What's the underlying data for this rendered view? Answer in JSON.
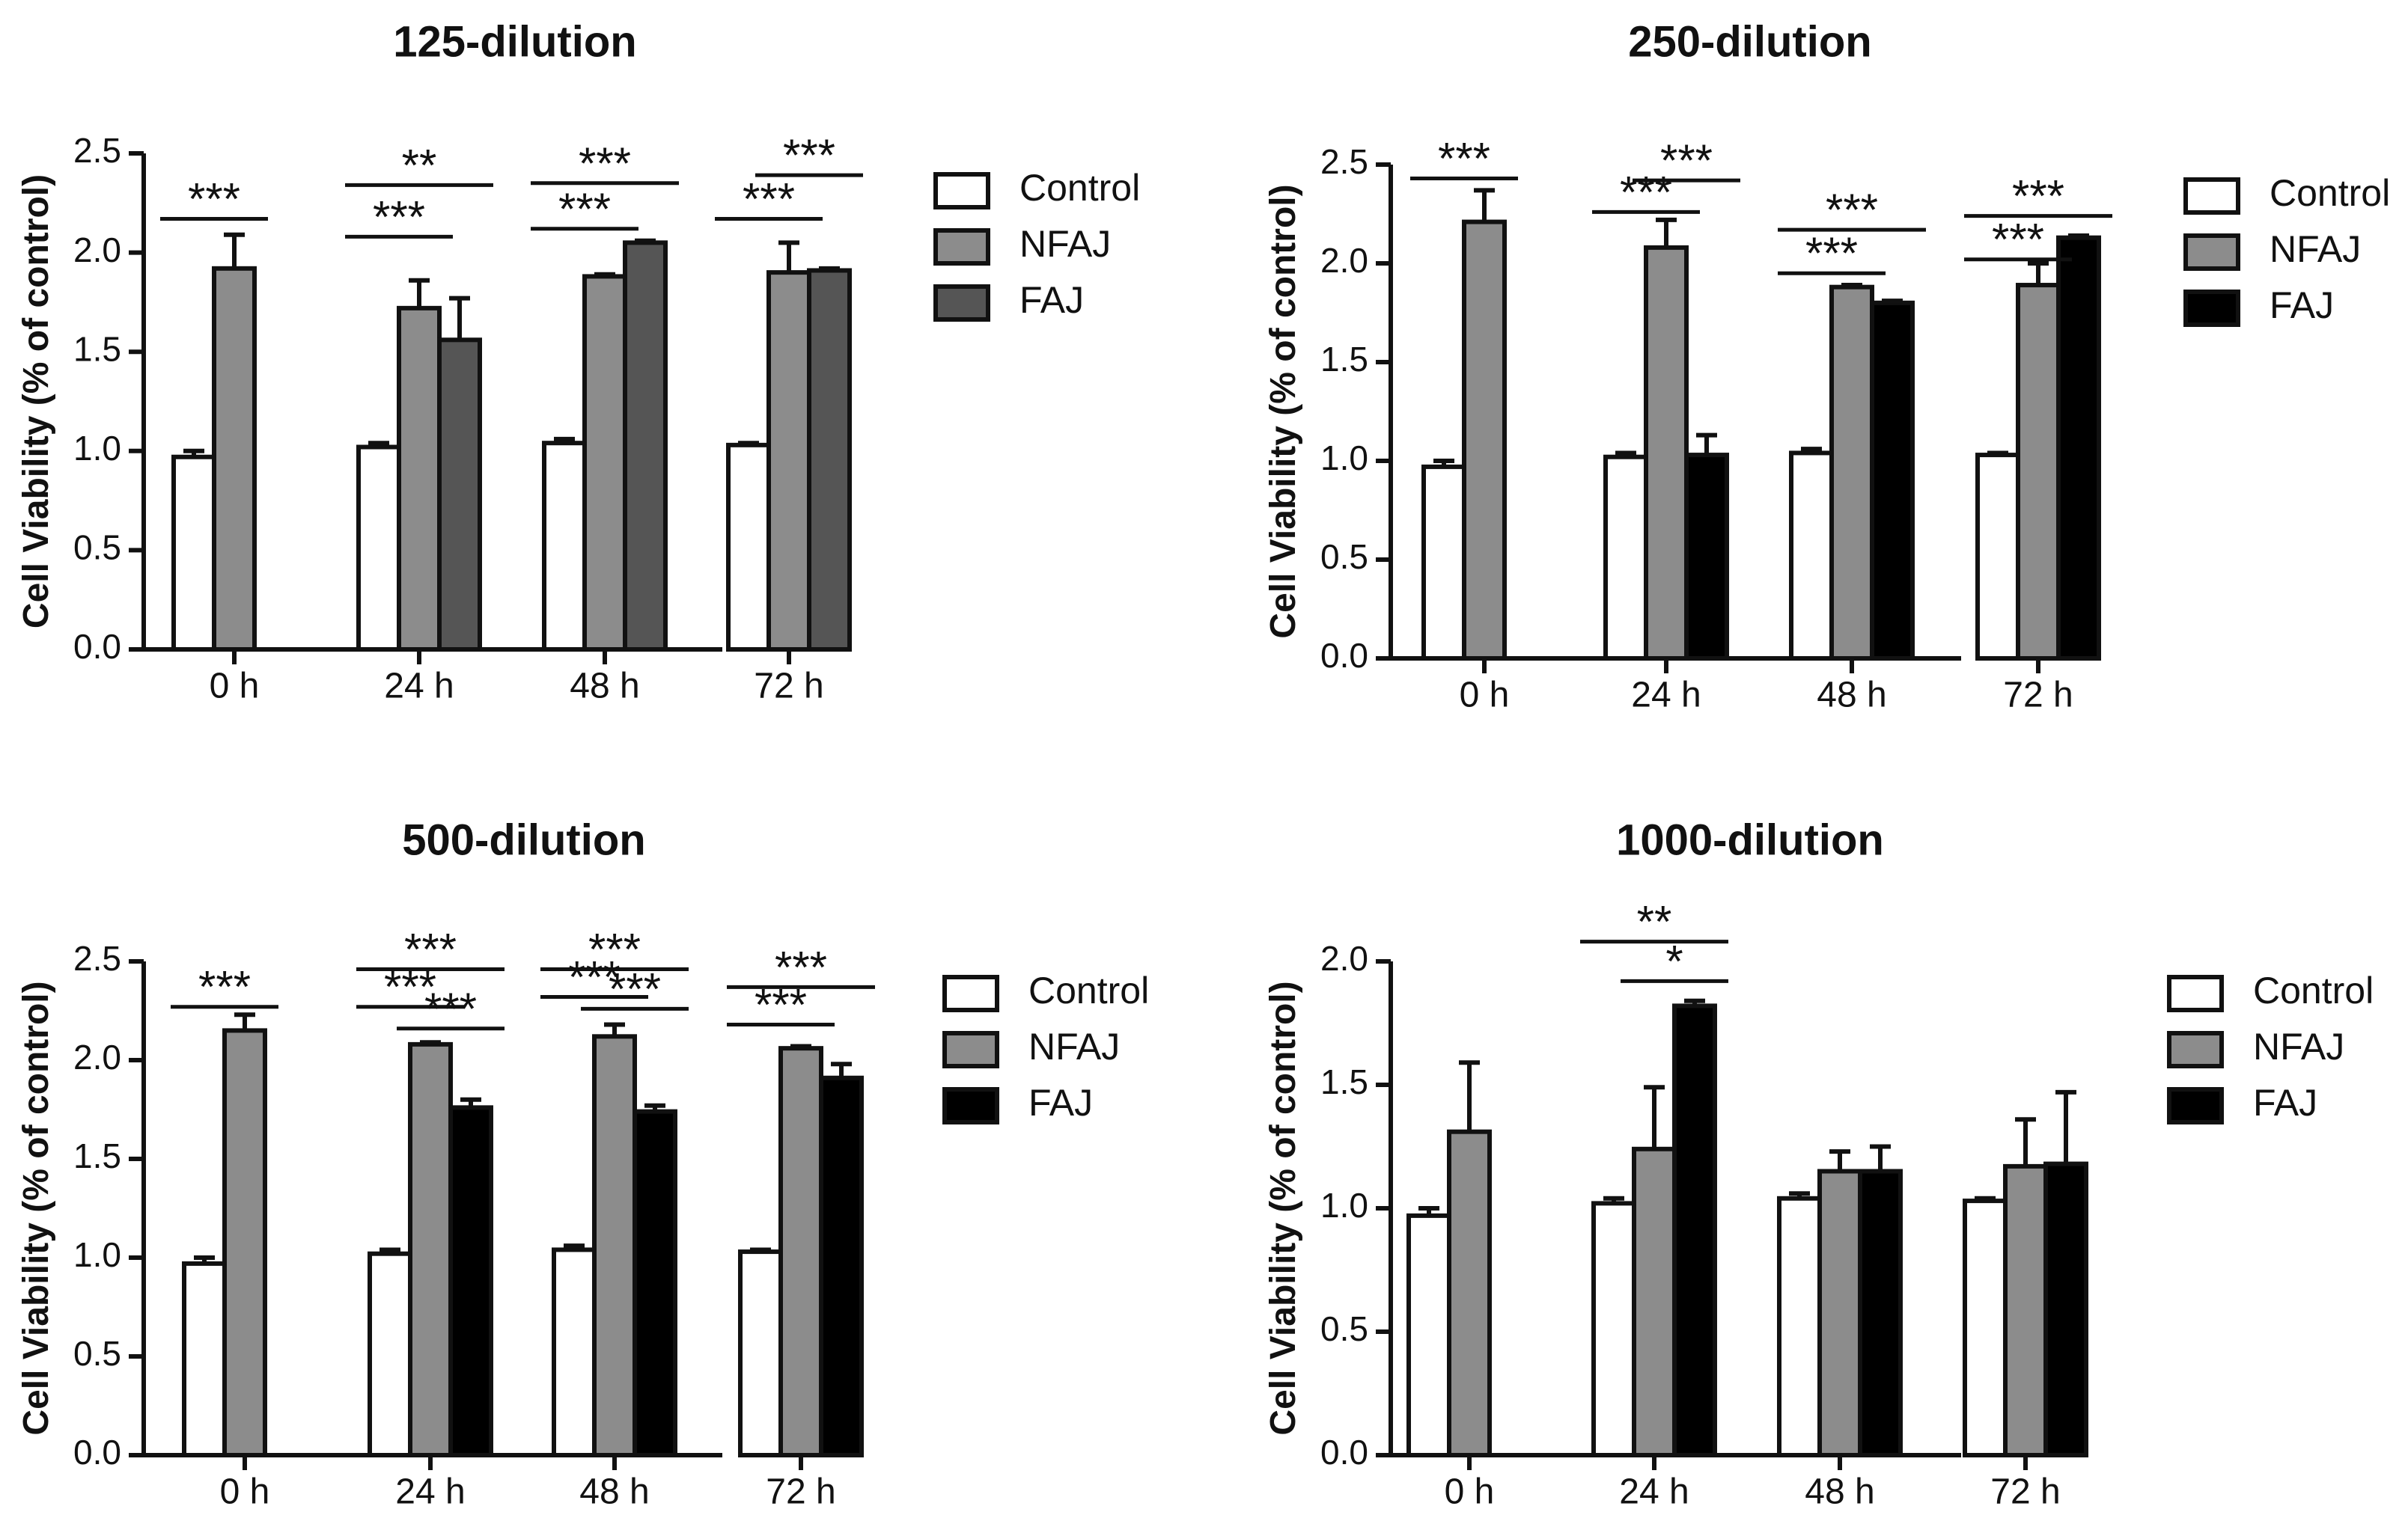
{
  "chart_data": [
    {
      "type": "bar",
      "title": "125-dilution",
      "xlabel": "",
      "ylabel": "Cell Viability (% of control)",
      "ylim": [
        0,
        2.5
      ],
      "yticks": [
        "0.0",
        "0.5",
        "1.0",
        "1.5",
        "2.0",
        "2.5"
      ],
      "categories": [
        "0 h",
        "24 h",
        "48 h",
        "72 h"
      ],
      "legend_position": "right",
      "series": [
        {
          "name": "Control",
          "color": "#ffffff",
          "values": [
            0.97,
            1.02,
            1.04,
            1.03
          ],
          "errors": [
            0.03,
            0.02,
            0.02,
            0.01
          ]
        },
        {
          "name": "NFAJ",
          "color": "#8c8c8c",
          "values": [
            1.92,
            1.72,
            1.88,
            1.9
          ],
          "errors": [
            0.17,
            0.14,
            0.01,
            0.15
          ]
        },
        {
          "name": "FAJ",
          "color": "#555555",
          "values": [
            null,
            1.56,
            2.05,
            1.91
          ],
          "errors": [
            null,
            0.21,
            0.01,
            0.01
          ]
        }
      ],
      "significance": [
        {
          "label": "***",
          "cat": 0,
          "from": 0,
          "to": 1,
          "y": 2.17
        },
        {
          "label": "***",
          "cat": 1,
          "from": 0,
          "to": 1,
          "y": 2.08
        },
        {
          "label": "**",
          "cat": 1,
          "from": 0,
          "to": 2,
          "y": 2.34
        },
        {
          "label": "***",
          "cat": 2,
          "from": 0,
          "to": 1,
          "y": 2.12
        },
        {
          "label": "***",
          "cat": 2,
          "from": 0,
          "to": 2,
          "y": 2.35
        },
        {
          "label": "***",
          "cat": 3,
          "from": 0,
          "to": 1,
          "y": 2.17
        },
        {
          "label": "***",
          "cat": 3,
          "from": 1,
          "to": 2,
          "y": 2.39
        }
      ]
    },
    {
      "type": "bar",
      "title": "250-dilution",
      "xlabel": "",
      "ylabel": "Cell Viability (% of control)",
      "ylim": [
        0,
        2.5
      ],
      "yticks": [
        "0.0",
        "0.5",
        "1.0",
        "1.5",
        "2.0",
        "2.5"
      ],
      "categories": [
        "0 h",
        "24 h",
        "48 h",
        "72 h"
      ],
      "legend_position": "right",
      "series": [
        {
          "name": "Control",
          "color": "#ffffff",
          "values": [
            0.97,
            1.02,
            1.04,
            1.03
          ],
          "errors": [
            0.03,
            0.02,
            0.02,
            0.01
          ]
        },
        {
          "name": "NFAJ",
          "color": "#8c8c8c",
          "values": [
            2.21,
            2.08,
            1.88,
            1.89
          ],
          "errors": [
            0.16,
            0.14,
            0.01,
            0.11
          ]
        },
        {
          "name": "FAJ",
          "color": "#000000",
          "values": [
            null,
            1.03,
            1.8,
            2.13
          ],
          "errors": [
            null,
            0.1,
            0.01,
            0.01
          ]
        }
      ],
      "significance": [
        {
          "label": "***",
          "cat": 0,
          "from": 0,
          "to": 1,
          "y": 2.43
        },
        {
          "label": "***",
          "cat": 1,
          "from": 0,
          "to": 1,
          "y": 2.26
        },
        {
          "label": "***",
          "cat": 1,
          "from": 1,
          "to": 2,
          "y": 2.42
        },
        {
          "label": "***",
          "cat": 2,
          "from": 0,
          "to": 1,
          "y": 1.95
        },
        {
          "label": "***",
          "cat": 2,
          "from": 0,
          "to": 2,
          "y": 2.17
        },
        {
          "label": "***",
          "cat": 3,
          "from": 0,
          "to": 1,
          "y": 2.02
        },
        {
          "label": "***",
          "cat": 3,
          "from": 0,
          "to": 2,
          "y": 2.24
        }
      ]
    },
    {
      "type": "bar",
      "title": "500-dilution",
      "xlabel": "",
      "ylabel": "Cell Viability (% of control)",
      "ylim": [
        0,
        2.5
      ],
      "yticks": [
        "0.0",
        "0.5",
        "1.0",
        "1.5",
        "2.0",
        "2.5"
      ],
      "categories": [
        "0 h",
        "24 h",
        "48 h",
        "72 h"
      ],
      "legend_position": "right",
      "series": [
        {
          "name": "Control",
          "color": "#ffffff",
          "values": [
            0.97,
            1.02,
            1.04,
            1.03
          ],
          "errors": [
            0.03,
            0.02,
            0.02,
            0.01
          ]
        },
        {
          "name": "NFAJ",
          "color": "#8c8c8c",
          "values": [
            2.15,
            2.08,
            2.12,
            2.06
          ],
          "errors": [
            0.08,
            0.01,
            0.06,
            0.01
          ]
        },
        {
          "name": "FAJ",
          "color": "#000000",
          "values": [
            null,
            1.76,
            1.74,
            1.91
          ],
          "errors": [
            null,
            0.04,
            0.03,
            0.07
          ]
        }
      ],
      "significance": [
        {
          "label": "***",
          "cat": 0,
          "from": 0,
          "to": 1,
          "y": 2.27
        },
        {
          "label": "***",
          "cat": 1,
          "from": 0,
          "to": 1,
          "y": 2.27
        },
        {
          "label": "***",
          "cat": 1,
          "from": 1,
          "to": 2,
          "y": 2.16
        },
        {
          "label": "***",
          "cat": 1,
          "from": 0,
          "to": 2,
          "y": 2.46
        },
        {
          "label": "***",
          "cat": 2,
          "from": 0,
          "to": 1,
          "y": 2.32
        },
        {
          "label": "***",
          "cat": 2,
          "from": 1,
          "to": 2,
          "y": 2.26
        },
        {
          "label": "***",
          "cat": 2,
          "from": 0,
          "to": 2,
          "y": 2.46
        },
        {
          "label": "***",
          "cat": 3,
          "from": 0,
          "to": 1,
          "y": 2.18
        },
        {
          "label": "***",
          "cat": 3,
          "from": 0,
          "to": 2,
          "y": 2.37
        }
      ]
    },
    {
      "type": "bar",
      "title": "1000-dilution",
      "xlabel": "",
      "ylabel": "Cell Viability (% of control)",
      "ylim": [
        0,
        2.0
      ],
      "yticks": [
        "0.0",
        "0.5",
        "1.0",
        "1.5",
        "2.0"
      ],
      "categories": [
        "0 h",
        "24 h",
        "48 h",
        "72 h"
      ],
      "legend_position": "right",
      "series": [
        {
          "name": "Control",
          "color": "#ffffff",
          "values": [
            0.97,
            1.02,
            1.04,
            1.03
          ],
          "errors": [
            0.03,
            0.02,
            0.02,
            0.01
          ]
        },
        {
          "name": "NFAJ",
          "color": "#8c8c8c",
          "values": [
            1.31,
            1.24,
            1.15,
            1.17
          ],
          "errors": [
            0.28,
            0.25,
            0.08,
            0.19
          ]
        },
        {
          "name": "FAJ",
          "color": "#000000",
          "values": [
            null,
            1.82,
            1.15,
            1.18
          ],
          "errors": [
            null,
            0.02,
            0.1,
            0.29
          ]
        }
      ],
      "significance": [
        {
          "label": "*",
          "cat": 1,
          "from": 1,
          "to": 2,
          "y": 1.92
        },
        {
          "label": "**",
          "cat": 1,
          "from": 0,
          "to": 2,
          "y": 2.08
        }
      ]
    }
  ]
}
